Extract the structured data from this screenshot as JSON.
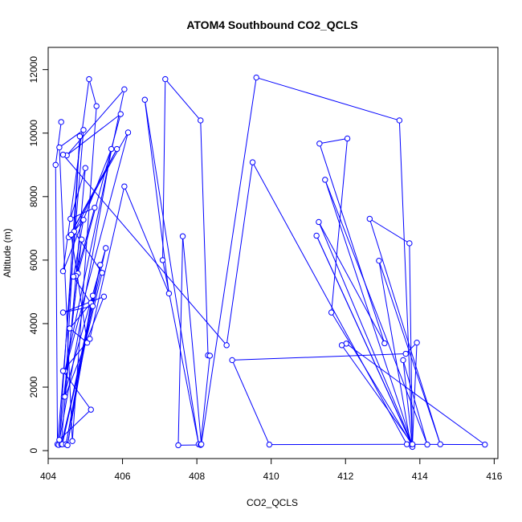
{
  "chart_data": {
    "type": "line",
    "title": "ATOM4 Southbound CO2_QCLS",
    "xlabel": "CO2_QCLS",
    "ylabel": "Altitude (m)",
    "xlim": [
      404.0,
      416.1
    ],
    "ylim": [
      -250,
      12700
    ],
    "x_ticks": [
      404,
      406,
      408,
      410,
      412,
      414,
      416
    ],
    "y_ticks": [
      0,
      2000,
      4000,
      6000,
      8000,
      10000,
      12000
    ],
    "grid": false,
    "legend": "none",
    "markers": "open-circle",
    "color": "#0000ff",
    "series": [
      {
        "x": [
          404.35,
          404.2,
          404.25,
          404.95,
          404.3,
          404.65,
          405.3,
          405.1,
          404.4,
          405.7,
          404.28,
          404.8,
          405.95,
          404.5,
          406.05,
          404.45,
          406.15,
          404.55,
          405.85,
          404.7,
          405.45,
          404.35,
          405.0,
          404.6,
          405.25,
          404.75,
          404.9,
          404.42,
          405.55,
          404.38,
          405.4,
          404.48,
          405.2,
          404.52,
          405.15,
          404.58,
          405.05,
          404.62,
          404.95,
          404.68,
          405.2,
          404.4,
          405.5,
          404.45,
          404.85,
          404.3,
          405.15,
          404.4,
          405.12,
          406.05,
          407.25,
          406.6,
          408.05,
          407.08,
          407.15,
          408.1,
          408.3,
          408.35,
          408.1,
          407.5,
          407.62,
          408.12,
          409.6,
          413.45,
          413.8,
          411.22,
          413.78,
          411.62,
          412.05,
          411.3,
          413.05,
          411.28,
          413.8,
          411.45,
          414.2,
          413.55,
          413.8,
          413.72,
          412.65,
          414.55,
          412.9,
          413.75,
          415.75,
          412.02,
          411.9,
          413.8,
          413.92,
          413.62,
          408.95,
          409.95,
          413.65,
          409.5,
          408.8,
          404.4
        ],
        "y": [
          10350,
          9000,
          200,
          10100,
          9550,
          300,
          10850,
          11700,
          5650,
          9500,
          180,
          5580,
          10600,
          9300,
          11380,
          2500,
          10020,
          6720,
          9500,
          6900,
          5600,
          200,
          8900,
          7300,
          7650,
          5500,
          6650,
          1700,
          6380,
          200,
          5850,
          200,
          4880,
          170,
          4650,
          3850,
          3400,
          6800,
          7270,
          5480,
          4550,
          4350,
          4850,
          1700,
          9900,
          340,
          1290,
          2510,
          3520,
          8320,
          4950,
          11050,
          200,
          6000,
          11700,
          10400,
          3000,
          2990,
          180,
          170,
          6750,
          200,
          11750,
          10400,
          160,
          6770,
          200,
          4350,
          9830,
          9670,
          3380,
          7200,
          180,
          8530,
          190,
          2850,
          120,
          6530,
          7300,
          200,
          5980,
          200,
          190,
          3370,
          3320,
          200,
          3400,
          3050,
          2850,
          190,
          200,
          9080,
          3320,
          9320
        ]
      }
    ]
  }
}
